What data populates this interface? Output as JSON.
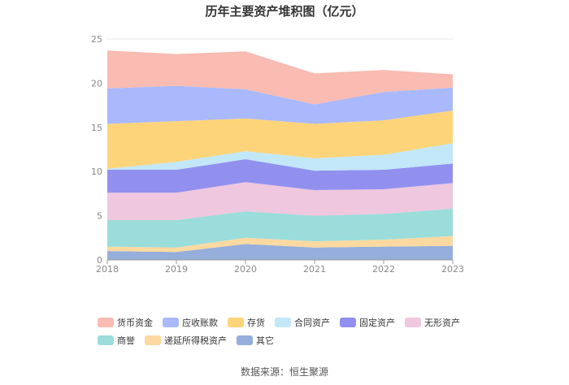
{
  "chart_data": {
    "type": "area",
    "stacked": true,
    "title": "历年主要资产堆积图（亿元）",
    "categories": [
      "2018",
      "2019",
      "2020",
      "2021",
      "2022",
      "2023"
    ],
    "ylim": [
      0,
      25
    ],
    "yticks": [
      "0",
      "5",
      "10",
      "15",
      "20",
      "25"
    ],
    "grid": true,
    "legend_position": "bottom",
    "series": [
      {
        "name": "其它",
        "color": "#95aedb",
        "values": [
          1.0,
          0.9,
          1.8,
          1.4,
          1.5,
          1.6
        ]
      },
      {
        "name": "递延所得税资产",
        "color": "#fbd9a0",
        "values": [
          0.5,
          0.5,
          0.7,
          0.7,
          0.8,
          1.1
        ]
      },
      {
        "name": "商誉",
        "color": "#9adddb",
        "values": [
          3.0,
          3.1,
          3.0,
          2.9,
          2.9,
          3.1
        ]
      },
      {
        "name": "无形资产",
        "color": "#efc7df",
        "values": [
          3.1,
          3.1,
          3.3,
          2.9,
          2.8,
          2.9
        ]
      },
      {
        "name": "固定资产",
        "color": "#9190ef",
        "values": [
          2.6,
          2.6,
          2.6,
          2.2,
          2.2,
          2.2
        ]
      },
      {
        "name": "合同资产",
        "color": "#c2e7f8",
        "values": [
          0.1,
          0.9,
          0.9,
          1.4,
          1.7,
          2.3
        ]
      },
      {
        "name": "存货",
        "color": "#fdd47a",
        "values": [
          5.1,
          4.6,
          3.7,
          3.9,
          3.9,
          3.7
        ]
      },
      {
        "name": "应收账款",
        "color": "#a9b9fb",
        "values": [
          4.0,
          4.0,
          3.3,
          2.2,
          3.2,
          2.6
        ]
      },
      {
        "name": "货币资金",
        "color": "#f9bbb2",
        "values": [
          4.3,
          3.6,
          4.3,
          3.5,
          2.5,
          1.5
        ]
      }
    ],
    "legend_order": [
      "货币资金",
      "应收账款",
      "存货",
      "合同资产",
      "固定资产",
      "无形资产",
      "商誉",
      "递延所得税资产",
      "其它"
    ]
  },
  "source": "数据来源：恒生聚源"
}
